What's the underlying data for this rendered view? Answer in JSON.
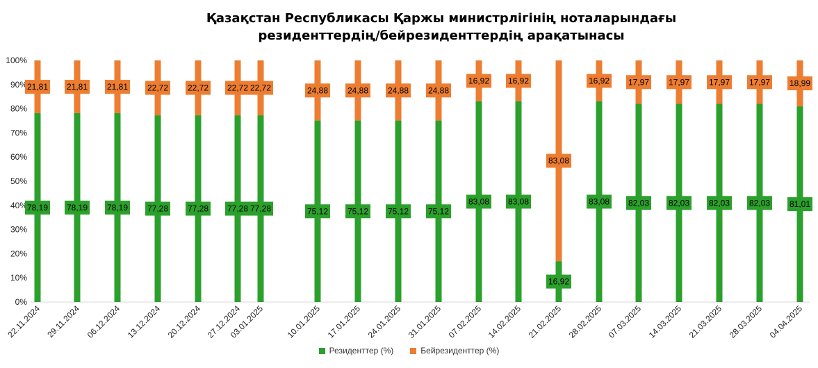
{
  "chart_data": {
    "type": "bar",
    "stacked": true,
    "title_line1": "Қазақстан Республикасы Қаржы министрлігінің ноталарындағы",
    "title_line2": "резиденттердің/бейрезиденттердің арақатынасы",
    "y_ticks": [
      "0%",
      "10%",
      "20%",
      "30%",
      "40%",
      "50%",
      "60%",
      "70%",
      "80%",
      "90%",
      "100%"
    ],
    "ylim": [
      0,
      100
    ],
    "grid": false,
    "legend_position": "bottom",
    "categories": [
      "22.11.2024",
      "29.11.2024",
      "06.12.2024",
      "13.12.2024",
      "20.12.2024",
      "27.12.2024",
      "03.01.2025",
      "10.01.2025",
      "17.01.2025",
      "24.01.2025",
      "31.01.2025",
      "07.02.2025",
      "14.02.2025",
      "21.02.2025",
      "28.02.2025",
      "07.03.2025",
      "14.03.2025",
      "21.03.2025",
      "28.03.2025",
      "04.04.2025"
    ],
    "series": [
      {
        "name": "Резиденттер (%)",
        "color": "#2ca02c",
        "values": [
          78.19,
          78.19,
          78.19,
          77.28,
          77.28,
          77.28,
          77.28,
          75.12,
          75.12,
          75.12,
          75.12,
          83.08,
          83.08,
          16.92,
          83.08,
          82.03,
          82.03,
          82.03,
          82.03,
          81.01
        ],
        "labels": [
          "78,19",
          "78,19",
          "78,19",
          "77,28",
          "77,28",
          "77,28",
          "77,28",
          "75,12",
          "75,12",
          "75,12",
          "75,12",
          "83,08",
          "83,08",
          "16,92",
          "83,08",
          "82,03",
          "82,03",
          "82,03",
          "82,03",
          "81,01"
        ]
      },
      {
        "name": "Бейрезиденттер (%)",
        "color": "#ed7d31",
        "values": [
          21.81,
          21.81,
          21.81,
          22.72,
          22.72,
          22.72,
          22.72,
          24.88,
          24.88,
          24.88,
          24.88,
          16.92,
          16.92,
          83.08,
          16.92,
          17.97,
          17.97,
          17.97,
          17.97,
          18.99
        ],
        "labels": [
          "21,81",
          "21,81",
          "21,81",
          "22,72",
          "22,72",
          "22,72",
          "22,72",
          "24,88",
          "24,88",
          "24,88",
          "24,88",
          "16,92",
          "16,92",
          "83,08",
          "16,92",
          "17,97",
          "17,97",
          "17,97",
          "17,97",
          "18,99"
        ]
      }
    ]
  }
}
